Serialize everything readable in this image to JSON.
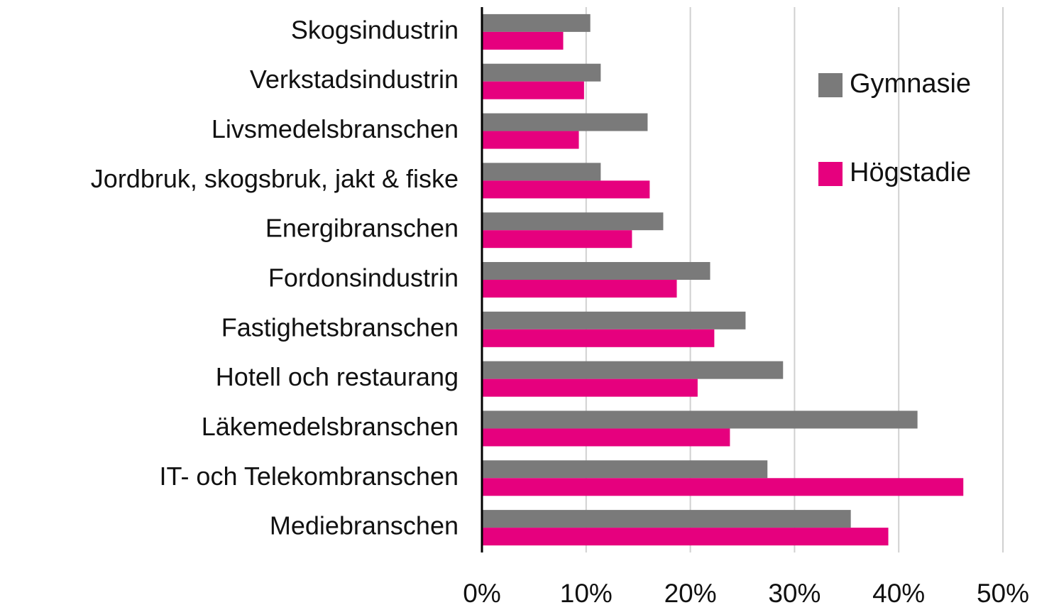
{
  "chart_data": {
    "type": "bar",
    "orientation": "horizontal",
    "categories": [
      "Skogsindustrin",
      "Verkstadsindustrin",
      "Livsmedelsbranschen",
      "Jordbruk, skogsbruk, jakt & fiske",
      "Energibranschen",
      "Fordonsindustrin",
      "Fastighetsbranschen",
      "Hotell och restaurang",
      "Läkemedelsbranschen",
      "IT- och Telekombranschen",
      "Mediebranschen"
    ],
    "series": [
      {
        "name": "Gymnasie",
        "color": "#7a7a7a",
        "values": [
          10.4,
          11.4,
          15.9,
          11.4,
          17.4,
          21.9,
          25.3,
          28.9,
          41.8,
          27.4,
          35.4
        ]
      },
      {
        "name": "Högstadie",
        "color": "#e6007e",
        "values": [
          7.8,
          9.8,
          9.3,
          16.1,
          14.4,
          18.7,
          22.3,
          20.7,
          23.8,
          46.2,
          39.0
        ]
      }
    ],
    "xlim": [
      0,
      50
    ],
    "xticks": [
      {
        "value": 0,
        "label": "0%"
      },
      {
        "value": 10,
        "label": "10%"
      },
      {
        "value": 20,
        "label": "20%"
      },
      {
        "value": 30,
        "label": "30%"
      },
      {
        "value": 40,
        "label": "40%"
      },
      {
        "value": 50,
        "label": "50%"
      }
    ],
    "grid": true,
    "legend": "upper right"
  }
}
